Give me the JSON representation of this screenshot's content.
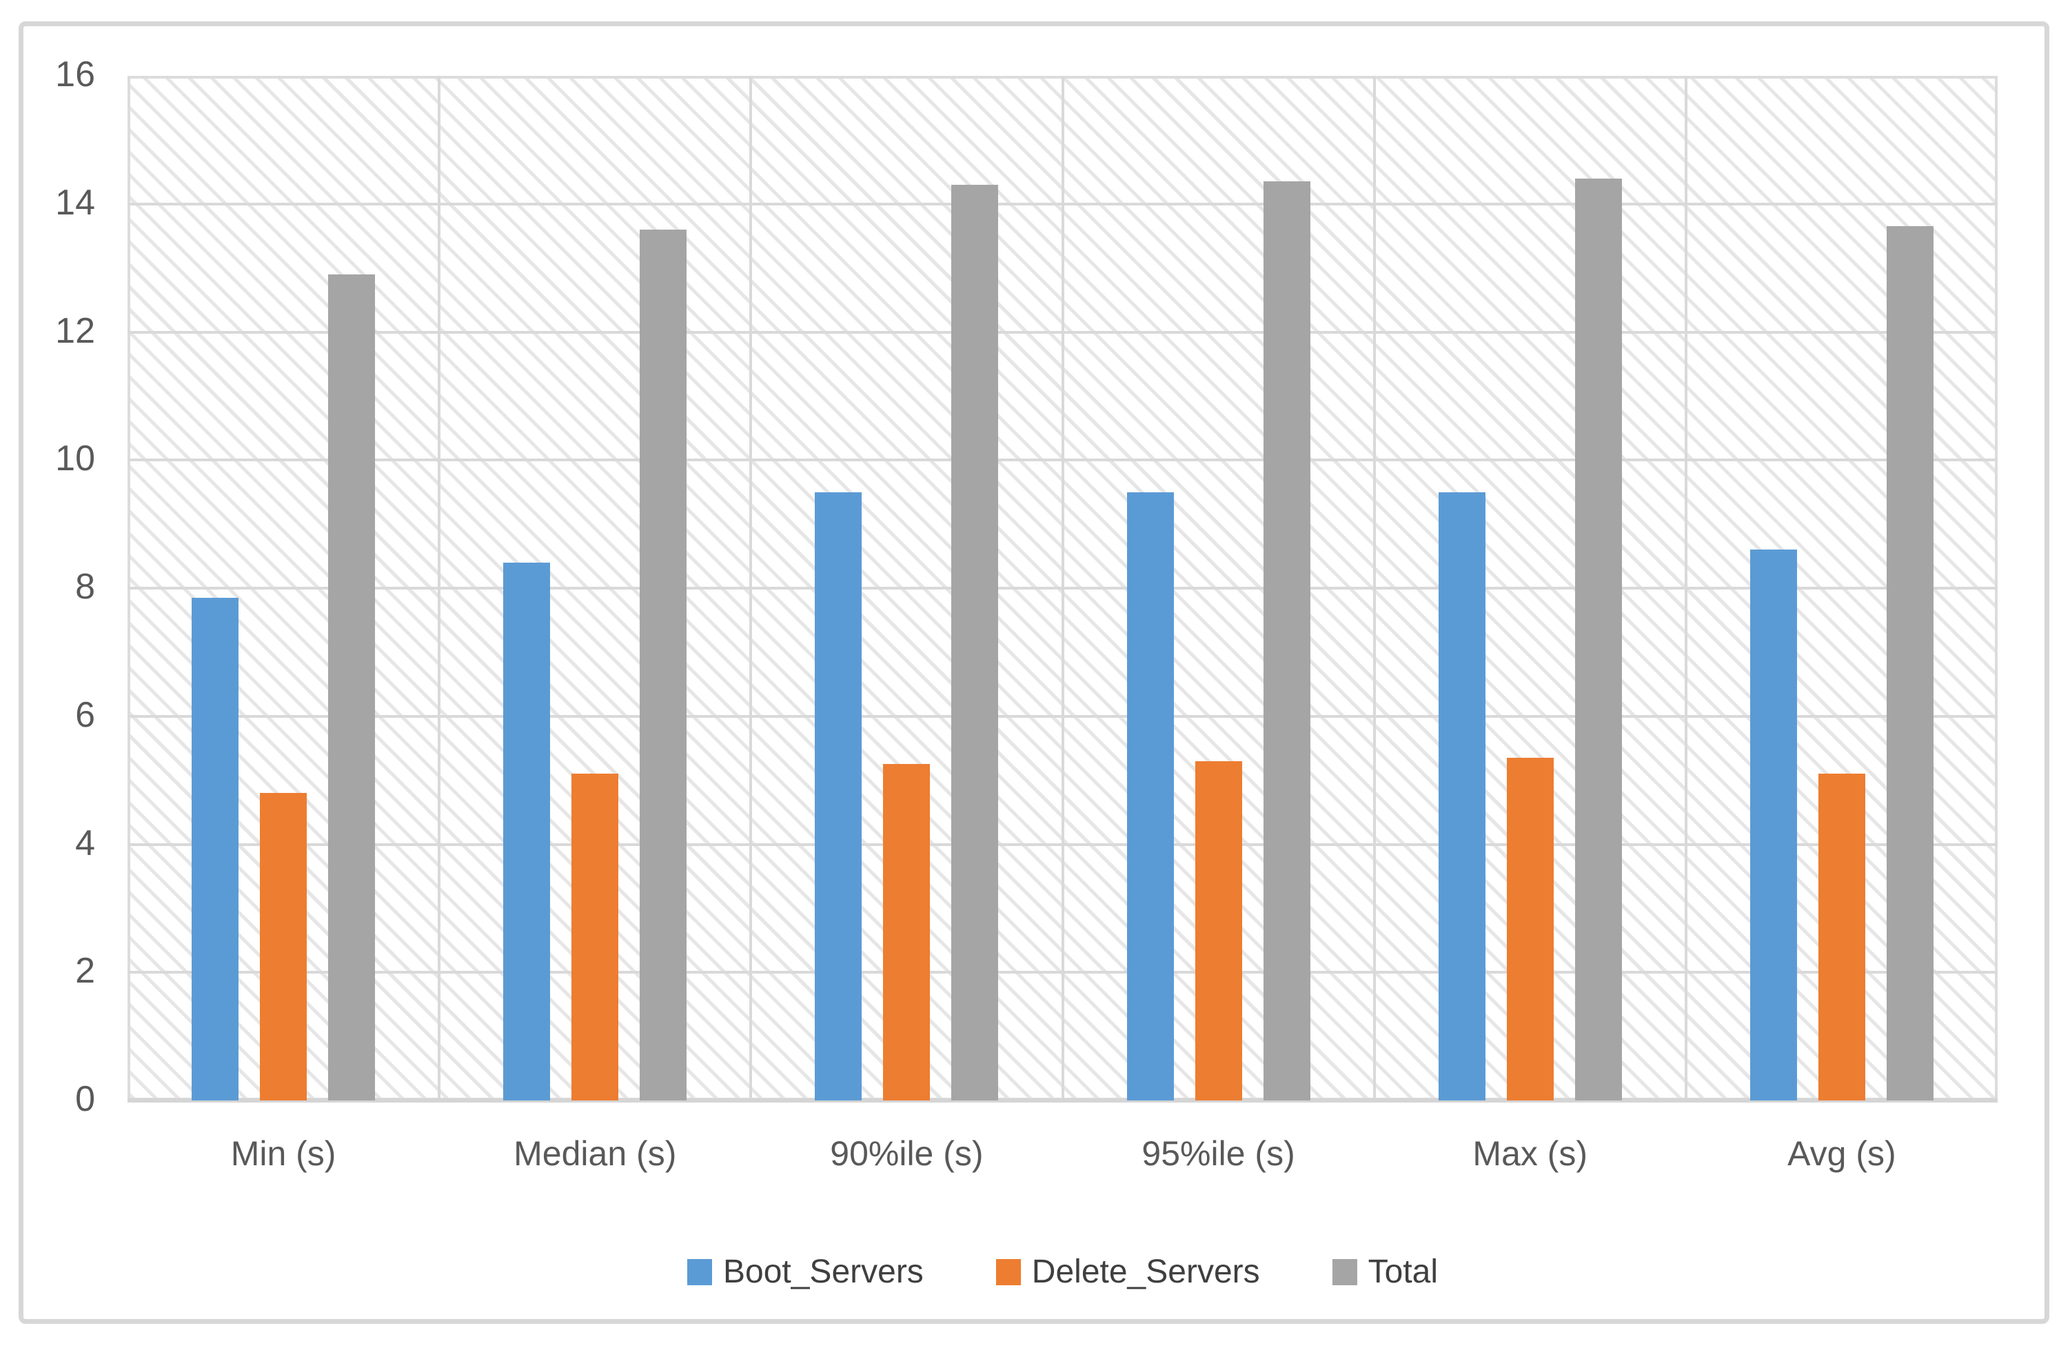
{
  "chart_data": {
    "type": "bar",
    "title": "",
    "xlabel": "",
    "ylabel": "",
    "categories": [
      "Min (s)",
      "Median (s)",
      "90%ile (s)",
      "95%ile (s)",
      "Max (s)",
      "Avg (s)"
    ],
    "series": [
      {
        "name": "Boot_Servers",
        "color": "#5B9BD5",
        "values": [
          7.85,
          8.4,
          9.5,
          9.5,
          9.5,
          8.6
        ]
      },
      {
        "name": "Delete_Servers",
        "color": "#ED7D31",
        "values": [
          4.8,
          5.1,
          5.25,
          5.3,
          5.35,
          5.1
        ]
      },
      {
        "name": "Total",
        "color": "#A5A5A5",
        "values": [
          12.9,
          13.6,
          14.3,
          14.35,
          14.4,
          13.65
        ]
      }
    ],
    "ylim": [
      0,
      16
    ],
    "yticks": [
      0,
      2,
      4,
      6,
      8,
      10,
      12,
      14,
      16
    ],
    "grid": "both",
    "plot_background_pattern": "light-diagonal-hatch",
    "legend_position": "bottom",
    "axis_text_color": "#595959",
    "gridline_color": "#D9D9D9"
  }
}
